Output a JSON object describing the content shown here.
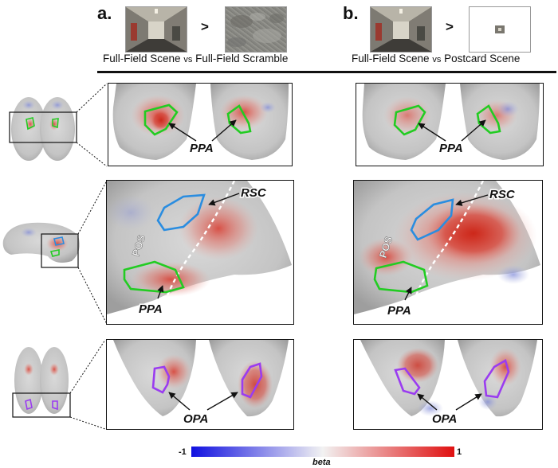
{
  "panels": {
    "a": {
      "letter": "a.",
      "operator": ">",
      "caption_left": "Full-Field Scene",
      "caption_vs": "vs",
      "caption_right": "Full-Field Scramble"
    },
    "b": {
      "letter": "b.",
      "operator": ">",
      "caption_left": "Full-Field Scene",
      "caption_vs": "vs",
      "caption_right": "Postcard Scene"
    }
  },
  "roi_labels": {
    "ppa": "PPA",
    "rsc": "RSC",
    "opa": "OPA",
    "pos": "POS"
  },
  "colorbar": {
    "min_label": "-1",
    "max_label": "1",
    "label": "beta",
    "colors": {
      "low": "#1010e0",
      "mid": "#f2f2f2",
      "high": "#e01010"
    }
  },
  "roi_colors": {
    "ppa": "#22cc22",
    "rsc": "#2a8de0",
    "opa": "#9a3cf0"
  }
}
